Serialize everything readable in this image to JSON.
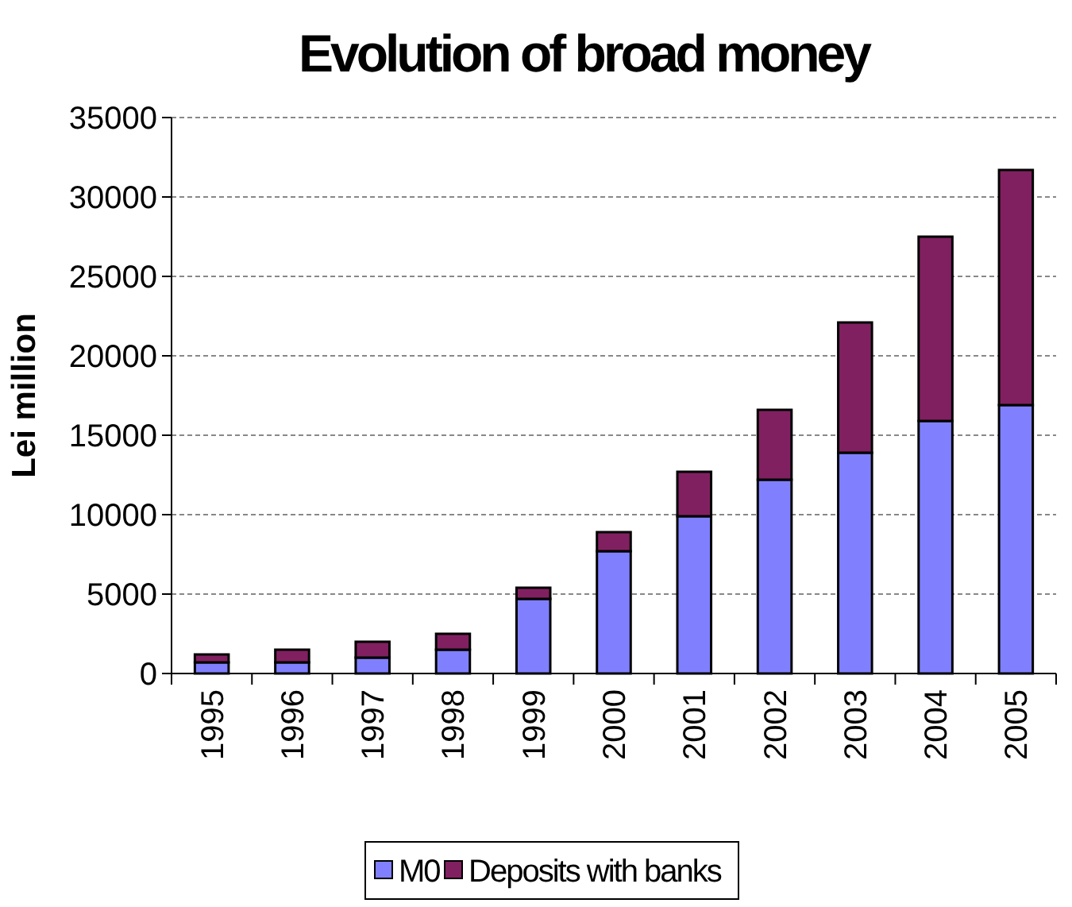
{
  "chart_data": {
    "type": "bar",
    "title": "Evolution of broad money",
    "ylabel": "Lei million",
    "categories": [
      "1995",
      "1996",
      "1997",
      "1998",
      "1999",
      "2000",
      "2001",
      "2002",
      "2003",
      "2004",
      "2005"
    ],
    "series": [
      {
        "name": "M0",
        "color": "#8080ff",
        "values": [
          700,
          700,
          1000,
          1500,
          4700,
          7700,
          9900,
          12200,
          13900,
          15900,
          16900
        ]
      },
      {
        "name": "Deposits with banks",
        "color": "#802060",
        "values": [
          500,
          800,
          1000,
          1000,
          700,
          1200,
          2800,
          4400,
          8200,
          11600,
          14800
        ]
      }
    ],
    "stacked": true,
    "ylim": [
      0,
      35000
    ],
    "yticks": [
      0,
      5000,
      10000,
      15000,
      20000,
      25000,
      30000,
      35000
    ],
    "grid": "y",
    "legend": "bottom"
  }
}
